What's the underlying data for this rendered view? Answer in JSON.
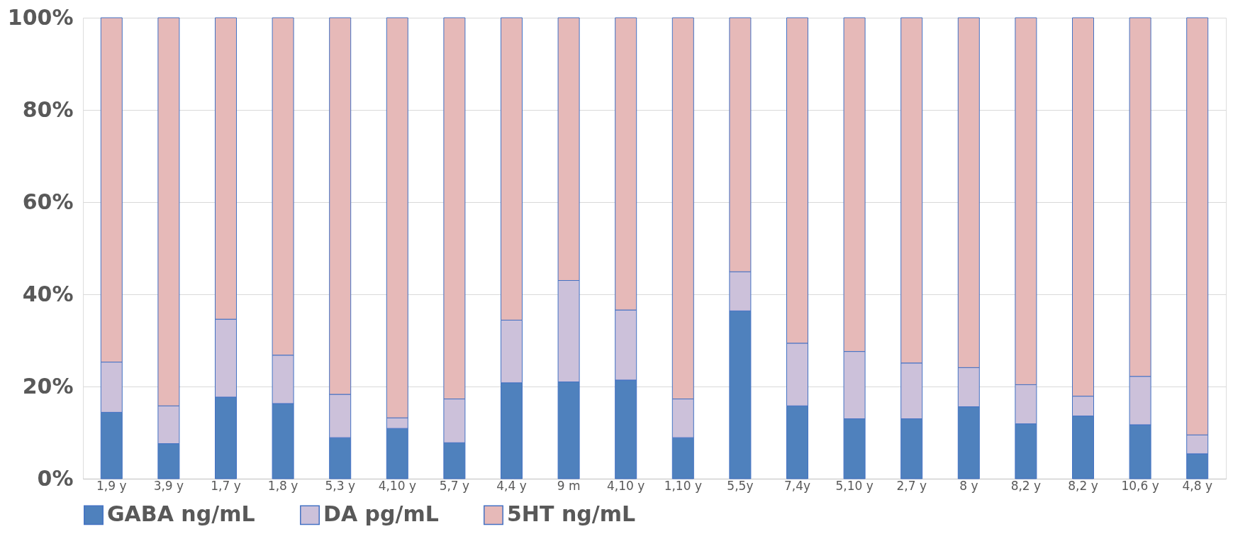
{
  "chart_data": {
    "type": "bar",
    "stacked": true,
    "categories": [
      "1,9 y",
      "3,9 y",
      "1,7 y",
      "1,8 y",
      "5,3 y",
      "4,10 y",
      "5,7 y",
      "4,4 y",
      "9 m",
      "4,10 y",
      "1,10 y",
      "5,5y",
      "7,4y",
      "5,10 y",
      "2,7 y",
      "8 y",
      "8,2 y",
      "8,2 y",
      "10,6 y",
      "4,8 y"
    ],
    "series": [
      {
        "name": "GABA ng/mL",
        "color": "#4f81bd",
        "values": [
          14.4,
          7.6,
          17.7,
          16.3,
          8.9,
          10.9,
          7.8,
          20.8,
          21.0,
          21.4,
          8.9,
          36.4,
          15.8,
          13.0,
          13.0,
          15.6,
          11.9,
          13.6,
          11.7,
          5.4
        ]
      },
      {
        "name": "DA pg/mL",
        "color": "#ccc1da",
        "values": [
          10.9,
          8.2,
          16.9,
          10.5,
          9.4,
          2.3,
          9.5,
          13.6,
          22.0,
          15.2,
          8.4,
          8.5,
          13.6,
          14.6,
          12.1,
          8.5,
          8.5,
          4.3,
          10.5,
          4.1
        ]
      },
      {
        "name": "5HT ng/mL",
        "color": "#e6b9b8",
        "values": [
          74.7,
          84.2,
          65.4,
          73.2,
          81.7,
          86.8,
          82.7,
          65.6,
          57.0,
          63.4,
          82.7,
          55.1,
          70.6,
          72.4,
          74.9,
          75.9,
          79.6,
          82.1,
          77.8,
          90.5
        ]
      }
    ],
    "ylim": [
      0,
      100
    ],
    "yticks": [
      {
        "value": 0,
        "label": "0%"
      },
      {
        "value": 20,
        "label": "20%"
      },
      {
        "value": 40,
        "label": "40%"
      },
      {
        "value": 60,
        "label": "60%"
      },
      {
        "value": 80,
        "label": "80%"
      },
      {
        "value": 100,
        "label": "100%"
      }
    ],
    "grid": "y",
    "legend": "bottom"
  }
}
